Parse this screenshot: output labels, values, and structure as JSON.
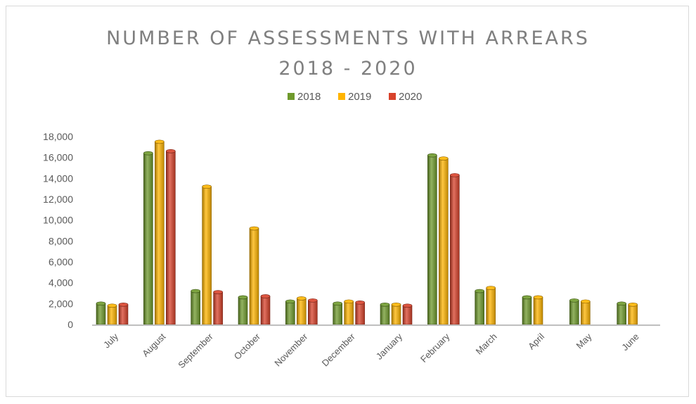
{
  "chart_data": {
    "type": "bar",
    "title_line1": "NUMBER OF ASSESSMENTS WITH ARREARS",
    "title_line2": "2018 - 2020",
    "xlabel": "",
    "ylabel": "",
    "ylim": [
      0,
      18000
    ],
    "yticks": [
      0,
      2000,
      4000,
      6000,
      8000,
      10000,
      12000,
      14000,
      16000,
      18000
    ],
    "ytick_labels": [
      "0",
      "2,000",
      "4,000",
      "6,000",
      "8,000",
      "10,000",
      "12,000",
      "14,000",
      "16,000",
      "18,000"
    ],
    "grid": false,
    "legend_position": "top",
    "categories": [
      "July",
      "August",
      "September",
      "October",
      "November",
      "December",
      "January",
      "February",
      "March",
      "April",
      "May",
      "June"
    ],
    "series": [
      {
        "name": "2018",
        "color": "#6f9a2c",
        "values": [
          2000,
          16400,
          3200,
          2600,
          2200,
          2000,
          1900,
          16200,
          3200,
          2600,
          2300,
          2000
        ]
      },
      {
        "name": "2019",
        "color": "#ffb400",
        "values": [
          1800,
          17500,
          13200,
          9200,
          2500,
          2200,
          1900,
          15900,
          3500,
          2600,
          2200,
          1900
        ]
      },
      {
        "name": "2020",
        "color": "#d8422b",
        "values": [
          1900,
          16600,
          3100,
          2700,
          2300,
          2100,
          1800,
          14300,
          null,
          null,
          null,
          null
        ]
      }
    ]
  }
}
